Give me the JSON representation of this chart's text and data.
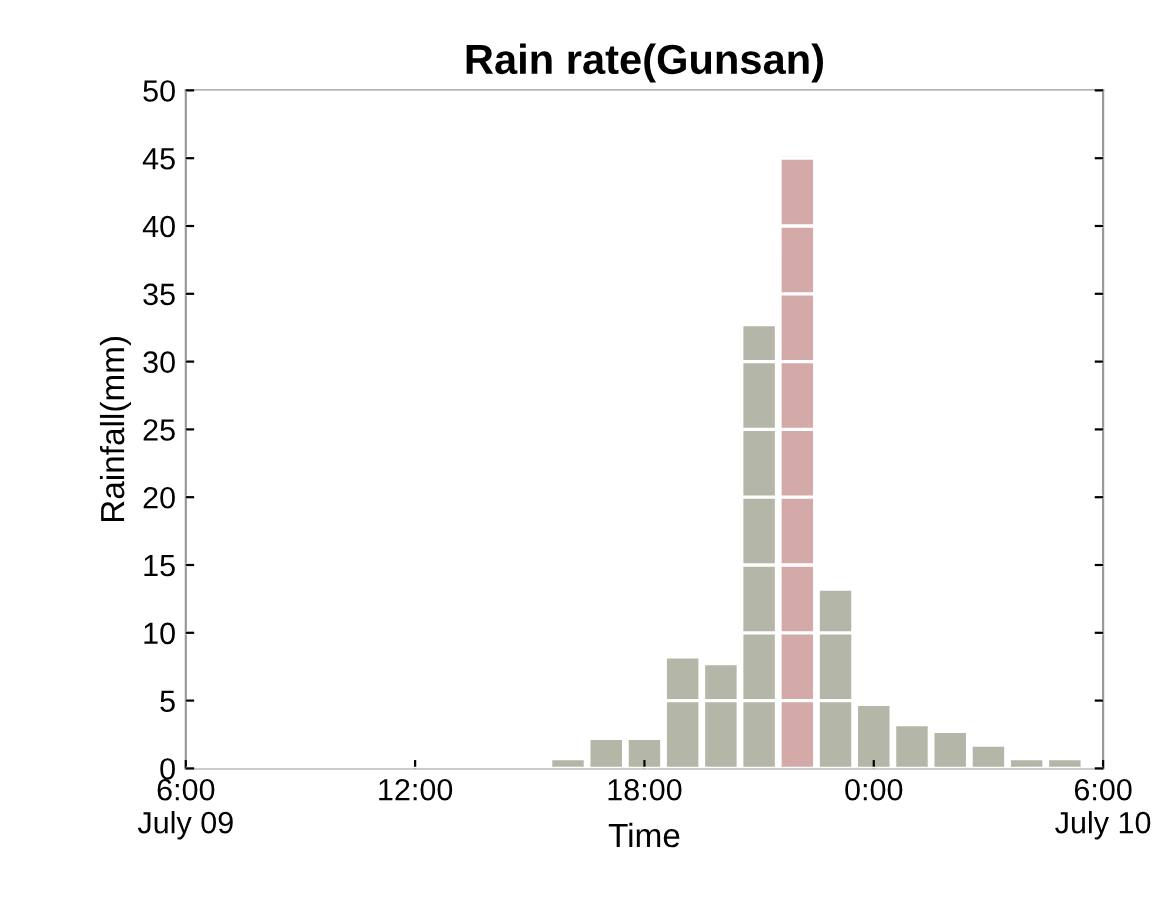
{
  "chart_data": {
    "type": "bar",
    "title": "Rain rate(Gunsan)",
    "xlabel": "Time",
    "ylabel": "Rainfall(mm)",
    "x": [
      16,
      17,
      18,
      19,
      20,
      21,
      22,
      23,
      24,
      25,
      26,
      27,
      28,
      29
    ],
    "values": [
      0.5,
      2,
      2,
      8,
      7.5,
      32.5,
      45,
      13,
      4.5,
      3,
      2.5,
      1.5,
      0.5,
      0.5
    ],
    "colors": [
      "#b4b6a8",
      "#b4b6a8",
      "#b4b6a8",
      "#b4b6a8",
      "#b4b6a8",
      "#b4b6a8",
      "#d4aaa8",
      "#b4b6a8",
      "#b4b6a8",
      "#b4b6a8",
      "#b4b6a8",
      "#b4b6a8",
      "#b4b6a8",
      "#b4b6a8"
    ],
    "xlim": [
      6,
      30
    ],
    "xticks": [
      {
        "value": 6,
        "label": "6:00\nJuly 09"
      },
      {
        "value": 12,
        "label": "12:00"
      },
      {
        "value": 18,
        "label": "18:00"
      },
      {
        "value": 24,
        "label": "0:00"
      },
      {
        "value": 30,
        "label": "6:00\nJuly 10"
      }
    ],
    "ylim": [
      0,
      50
    ],
    "yticks": [
      0,
      5,
      10,
      15,
      20,
      25,
      30,
      35,
      40,
      45,
      50
    ],
    "grid": "y"
  }
}
